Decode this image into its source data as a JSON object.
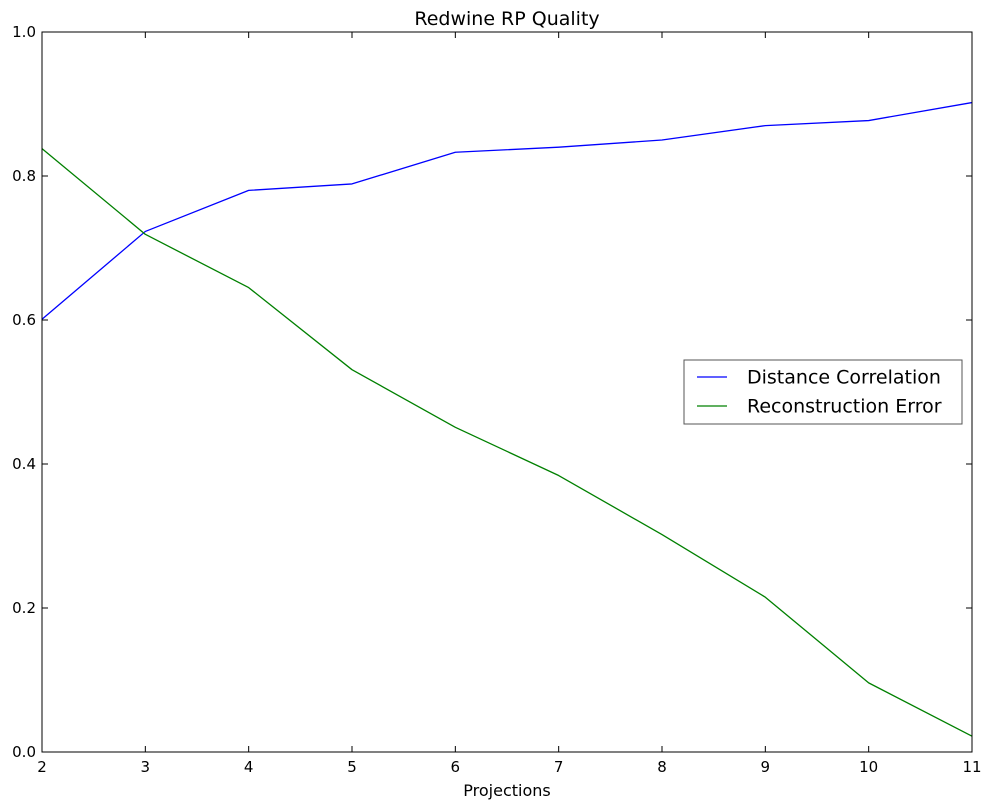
{
  "chart_data": {
    "type": "line",
    "title": "Redwine RP Quality",
    "xlabel": "Projections",
    "ylabel": "",
    "x": [
      2,
      3,
      4,
      5,
      6,
      7,
      8,
      9,
      10,
      11
    ],
    "xlim": [
      2,
      11
    ],
    "ylim": [
      0.0,
      1.0
    ],
    "xticks": [
      "2",
      "3",
      "4",
      "5",
      "6",
      "7",
      "8",
      "9",
      "10",
      "11"
    ],
    "yticks": [
      "0.0",
      "0.2",
      "0.4",
      "0.6",
      "0.8",
      "1.0"
    ],
    "grid": false,
    "legend_position": "center-right",
    "series": [
      {
        "name": "Distance Correlation",
        "color": "#0000ff",
        "values": [
          0.601,
          0.723,
          0.78,
          0.789,
          0.833,
          0.84,
          0.85,
          0.87,
          0.877,
          0.902
        ]
      },
      {
        "name": "Reconstruction Error",
        "color": "#008000",
        "values": [
          0.838,
          0.719,
          0.645,
          0.531,
          0.451,
          0.384,
          0.302,
          0.215,
          0.096,
          0.022
        ]
      }
    ]
  }
}
